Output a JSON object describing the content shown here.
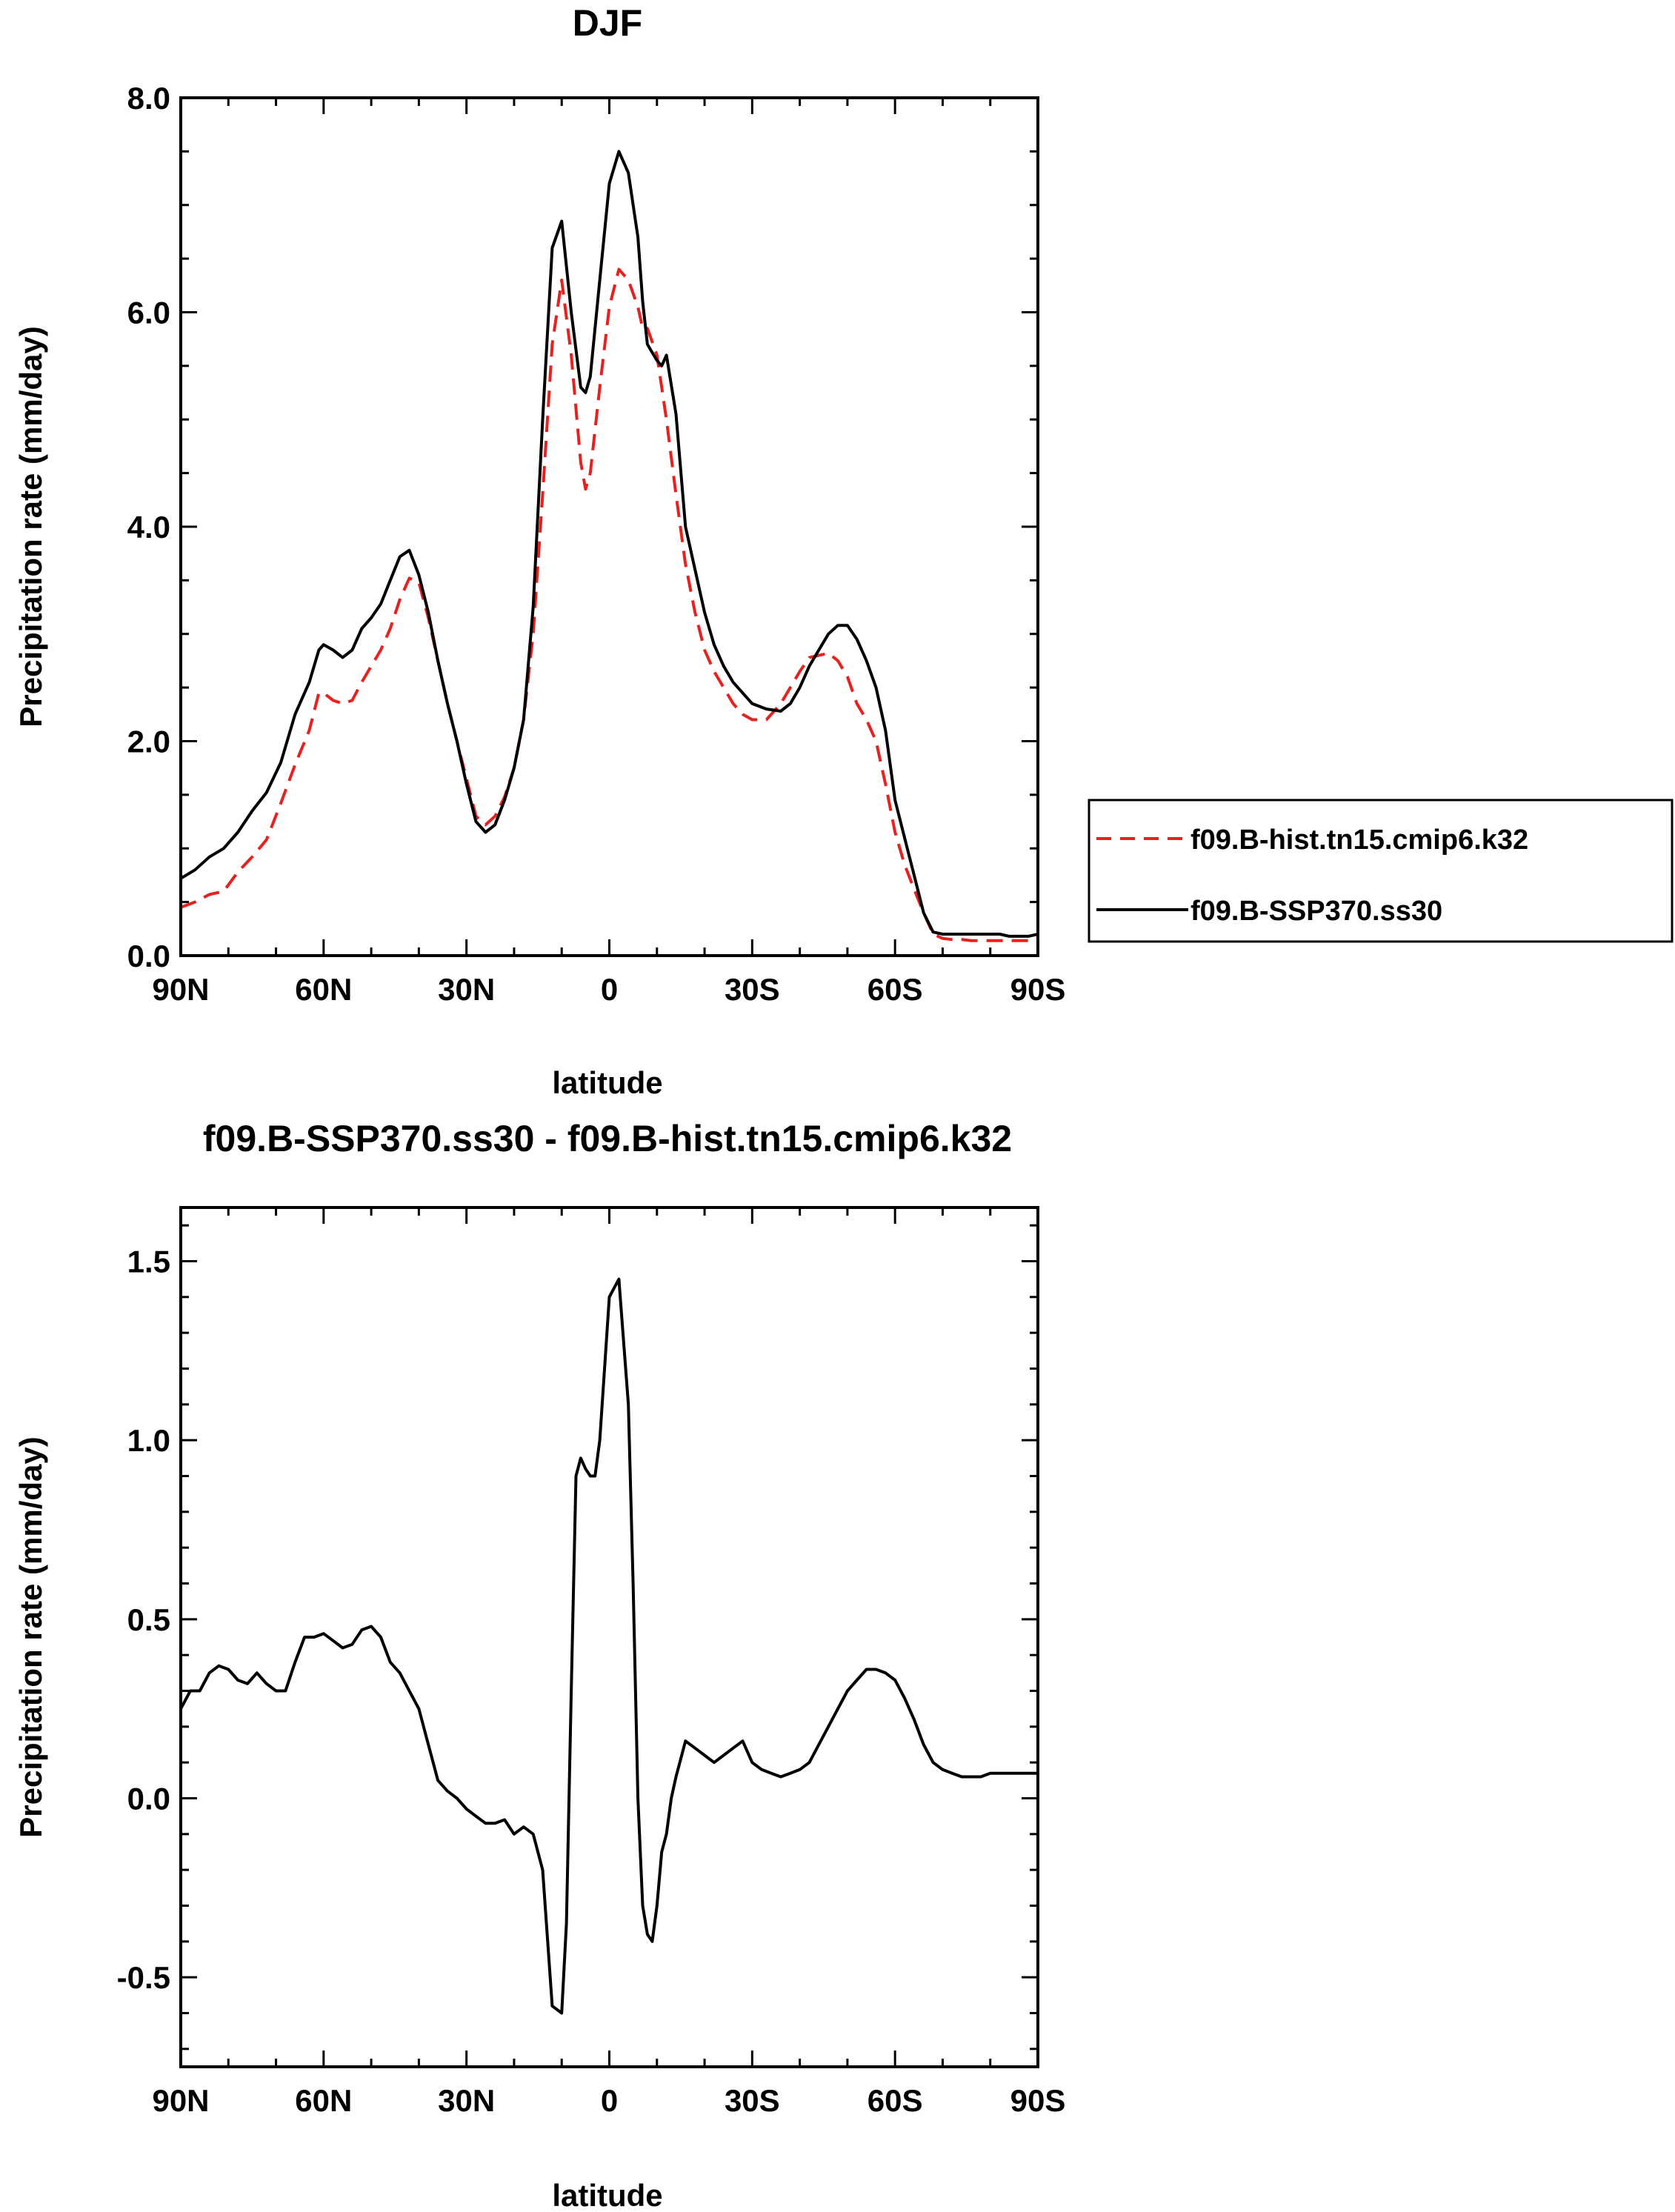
{
  "chart_data": [
    {
      "type": "line",
      "title": "DJF",
      "xlabel": "latitude",
      "ylabel": "Precipitation rate (mm/day)",
      "xlim": [
        90,
        -90
      ],
      "ylim": [
        0,
        8
      ],
      "xticks": [
        90,
        60,
        30,
        0,
        -30,
        -60,
        -90
      ],
      "xtick_labels": [
        "90N",
        "60N",
        "30N",
        "0",
        "30S",
        "60S",
        "90S"
      ],
      "yticks": [
        0,
        2,
        4,
        6,
        8
      ],
      "ytick_labels": [
        "0.0",
        "2.0",
        "4.0",
        "6.0",
        "8.0"
      ],
      "legend_position": "right",
      "series": [
        {
          "name": "f09.B-hist.tn15.cmip6.k32",
          "color": "#e8201e",
          "style": "dashed",
          "x": [
            90,
            87,
            84,
            81,
            78,
            75,
            72,
            69,
            66,
            63,
            61,
            60,
            58,
            56,
            54,
            52,
            50,
            48,
            46,
            44,
            42,
            40,
            38,
            36,
            34,
            32,
            30,
            28,
            26,
            24,
            22,
            20,
            18,
            16,
            14,
            12,
            10,
            8,
            6,
            5,
            4,
            2,
            0,
            -2,
            -4,
            -6,
            -7,
            -8,
            -10,
            -11,
            -12,
            -14,
            -16,
            -18,
            -20,
            -22,
            -24,
            -26,
            -28,
            -30,
            -33,
            -36,
            -38,
            -40,
            -42,
            -44,
            -46,
            -48,
            -50,
            -52,
            -54,
            -56,
            -58,
            -60,
            -62,
            -64,
            -66,
            -68,
            -70,
            -72,
            -74,
            -76,
            -78,
            -80,
            -82,
            -84,
            -86,
            -88,
            -90
          ],
          "y": [
            0.45,
            0.5,
            0.57,
            0.6,
            0.78,
            0.92,
            1.08,
            1.42,
            1.78,
            2.1,
            2.45,
            2.45,
            2.38,
            2.35,
            2.38,
            2.55,
            2.7,
            2.85,
            3.05,
            3.32,
            3.52,
            3.48,
            3.15,
            2.75,
            2.35,
            2.0,
            1.65,
            1.3,
            1.22,
            1.3,
            1.48,
            1.75,
            2.2,
            3.0,
            4.3,
            5.7,
            6.3,
            5.6,
            4.6,
            4.35,
            4.5,
            5.3,
            6.05,
            6.4,
            6.3,
            6.05,
            5.85,
            5.85,
            5.6,
            5.3,
            5.0,
            4.3,
            3.65,
            3.2,
            2.85,
            2.65,
            2.5,
            2.35,
            2.25,
            2.2,
            2.2,
            2.35,
            2.5,
            2.65,
            2.78,
            2.8,
            2.82,
            2.75,
            2.6,
            2.35,
            2.2,
            2.0,
            1.6,
            1.15,
            0.85,
            0.62,
            0.4,
            0.2,
            0.16,
            0.15,
            0.15,
            0.14,
            0.14,
            0.14,
            0.14,
            0.14,
            0.14,
            0.14,
            0.14
          ]
        },
        {
          "name": "f09.B-SSP370.ss30",
          "color": "#000000",
          "style": "solid",
          "x": [
            90,
            87,
            84,
            81,
            78,
            75,
            72,
            69,
            66,
            63,
            61,
            60,
            58,
            56,
            54,
            52,
            50,
            48,
            46,
            44,
            42,
            40,
            38,
            36,
            34,
            32,
            30,
            28,
            26,
            24,
            22,
            20,
            18,
            16,
            14,
            12,
            10,
            8,
            6,
            5,
            4,
            2,
            0,
            -2,
            -4,
            -6,
            -7,
            -8,
            -10,
            -11,
            -12,
            -14,
            -16,
            -18,
            -20,
            -22,
            -24,
            -26,
            -28,
            -30,
            -33,
            -36,
            -38,
            -40,
            -42,
            -44,
            -46,
            -48,
            -50,
            -52,
            -54,
            -56,
            -58,
            -60,
            -62,
            -64,
            -66,
            -68,
            -70,
            -72,
            -74,
            -76,
            -78,
            -80,
            -82,
            -84,
            -86,
            -88,
            -90
          ],
          "y": [
            0.72,
            0.8,
            0.92,
            1.0,
            1.15,
            1.35,
            1.52,
            1.8,
            2.25,
            2.55,
            2.85,
            2.9,
            2.85,
            2.78,
            2.85,
            3.05,
            3.15,
            3.28,
            3.5,
            3.72,
            3.78,
            3.55,
            3.2,
            2.75,
            2.35,
            2.0,
            1.6,
            1.25,
            1.15,
            1.22,
            1.45,
            1.75,
            2.2,
            3.25,
            5.0,
            6.6,
            6.85,
            6.0,
            5.3,
            5.25,
            5.4,
            6.3,
            7.2,
            7.5,
            7.3,
            6.7,
            6.1,
            5.7,
            5.55,
            5.5,
            5.6,
            5.05,
            4.0,
            3.6,
            3.2,
            2.9,
            2.7,
            2.55,
            2.45,
            2.35,
            2.3,
            2.28,
            2.35,
            2.5,
            2.7,
            2.85,
            3.0,
            3.08,
            3.08,
            2.95,
            2.75,
            2.5,
            2.1,
            1.45,
            1.1,
            0.75,
            0.4,
            0.22,
            0.2,
            0.2,
            0.2,
            0.2,
            0.2,
            0.2,
            0.2,
            0.18,
            0.18,
            0.18,
            0.2
          ]
        }
      ]
    },
    {
      "type": "line",
      "title": "f09.B-SSP370.ss30 - f09.B-hist.tn15.cmip6.k32",
      "xlabel": "latitude",
      "ylabel": "Precipitation rate (mm/day)",
      "xlim": [
        90,
        -90
      ],
      "ylim": [
        -0.75,
        1.65
      ],
      "xticks": [
        90,
        60,
        30,
        0,
        -30,
        -60,
        -90
      ],
      "xtick_labels": [
        "90N",
        "60N",
        "30N",
        "0",
        "30S",
        "60S",
        "90S"
      ],
      "yticks": [
        -0.5,
        0,
        0.5,
        1.0,
        1.5
      ],
      "ytick_labels": [
        "-0.5",
        "0.0",
        "0.5",
        "1.0",
        "1.5"
      ],
      "series": [
        {
          "name": "f09.B-SSP370.ss30 - f09.B-hist.tn15.cmip6.k32",
          "color": "#000000",
          "style": "solid",
          "x": [
            90,
            88,
            86,
            84,
            82,
            80,
            78,
            76,
            74,
            72,
            70,
            68,
            66,
            64,
            62,
            60,
            58,
            56,
            54,
            52,
            50,
            48,
            46,
            44,
            42,
            40,
            38,
            36,
            34,
            32,
            30,
            28,
            26,
            24,
            22,
            20,
            18,
            16,
            14,
            12,
            10,
            9,
            8,
            7,
            6,
            5,
            4,
            3,
            2,
            0,
            -2,
            -4,
            -5,
            -6,
            -7,
            -8,
            -9,
            -10,
            -11,
            -12,
            -13,
            -14,
            -16,
            -18,
            -20,
            -22,
            -24,
            -26,
            -28,
            -30,
            -32,
            -34,
            -36,
            -38,
            -40,
            -42,
            -44,
            -46,
            -48,
            -50,
            -52,
            -54,
            -56,
            -58,
            -60,
            -62,
            -64,
            -66,
            -68,
            -70,
            -72,
            -74,
            -76,
            -78,
            -80,
            -82,
            -84,
            -86,
            -88,
            -90
          ],
          "y": [
            0.25,
            0.3,
            0.3,
            0.35,
            0.37,
            0.36,
            0.33,
            0.32,
            0.35,
            0.32,
            0.3,
            0.3,
            0.38,
            0.45,
            0.45,
            0.46,
            0.44,
            0.42,
            0.43,
            0.47,
            0.48,
            0.45,
            0.38,
            0.35,
            0.3,
            0.25,
            0.15,
            0.05,
            0.02,
            0.0,
            -0.03,
            -0.05,
            -0.07,
            -0.07,
            -0.06,
            -0.1,
            -0.08,
            -0.1,
            -0.2,
            -0.58,
            -0.6,
            -0.35,
            0.3,
            0.9,
            0.95,
            0.92,
            0.9,
            0.9,
            1.0,
            1.4,
            1.45,
            1.1,
            0.6,
            0.0,
            -0.3,
            -0.38,
            -0.4,
            -0.3,
            -0.15,
            -0.1,
            0.0,
            0.06,
            0.16,
            0.14,
            0.12,
            0.1,
            0.12,
            0.14,
            0.16,
            0.1,
            0.08,
            0.07,
            0.06,
            0.07,
            0.08,
            0.1,
            0.15,
            0.2,
            0.25,
            0.3,
            0.33,
            0.36,
            0.36,
            0.35,
            0.33,
            0.28,
            0.22,
            0.15,
            0.1,
            0.08,
            0.07,
            0.06,
            0.06,
            0.06,
            0.07,
            0.07,
            0.07,
            0.07,
            0.07,
            0.07
          ]
        }
      ]
    }
  ]
}
